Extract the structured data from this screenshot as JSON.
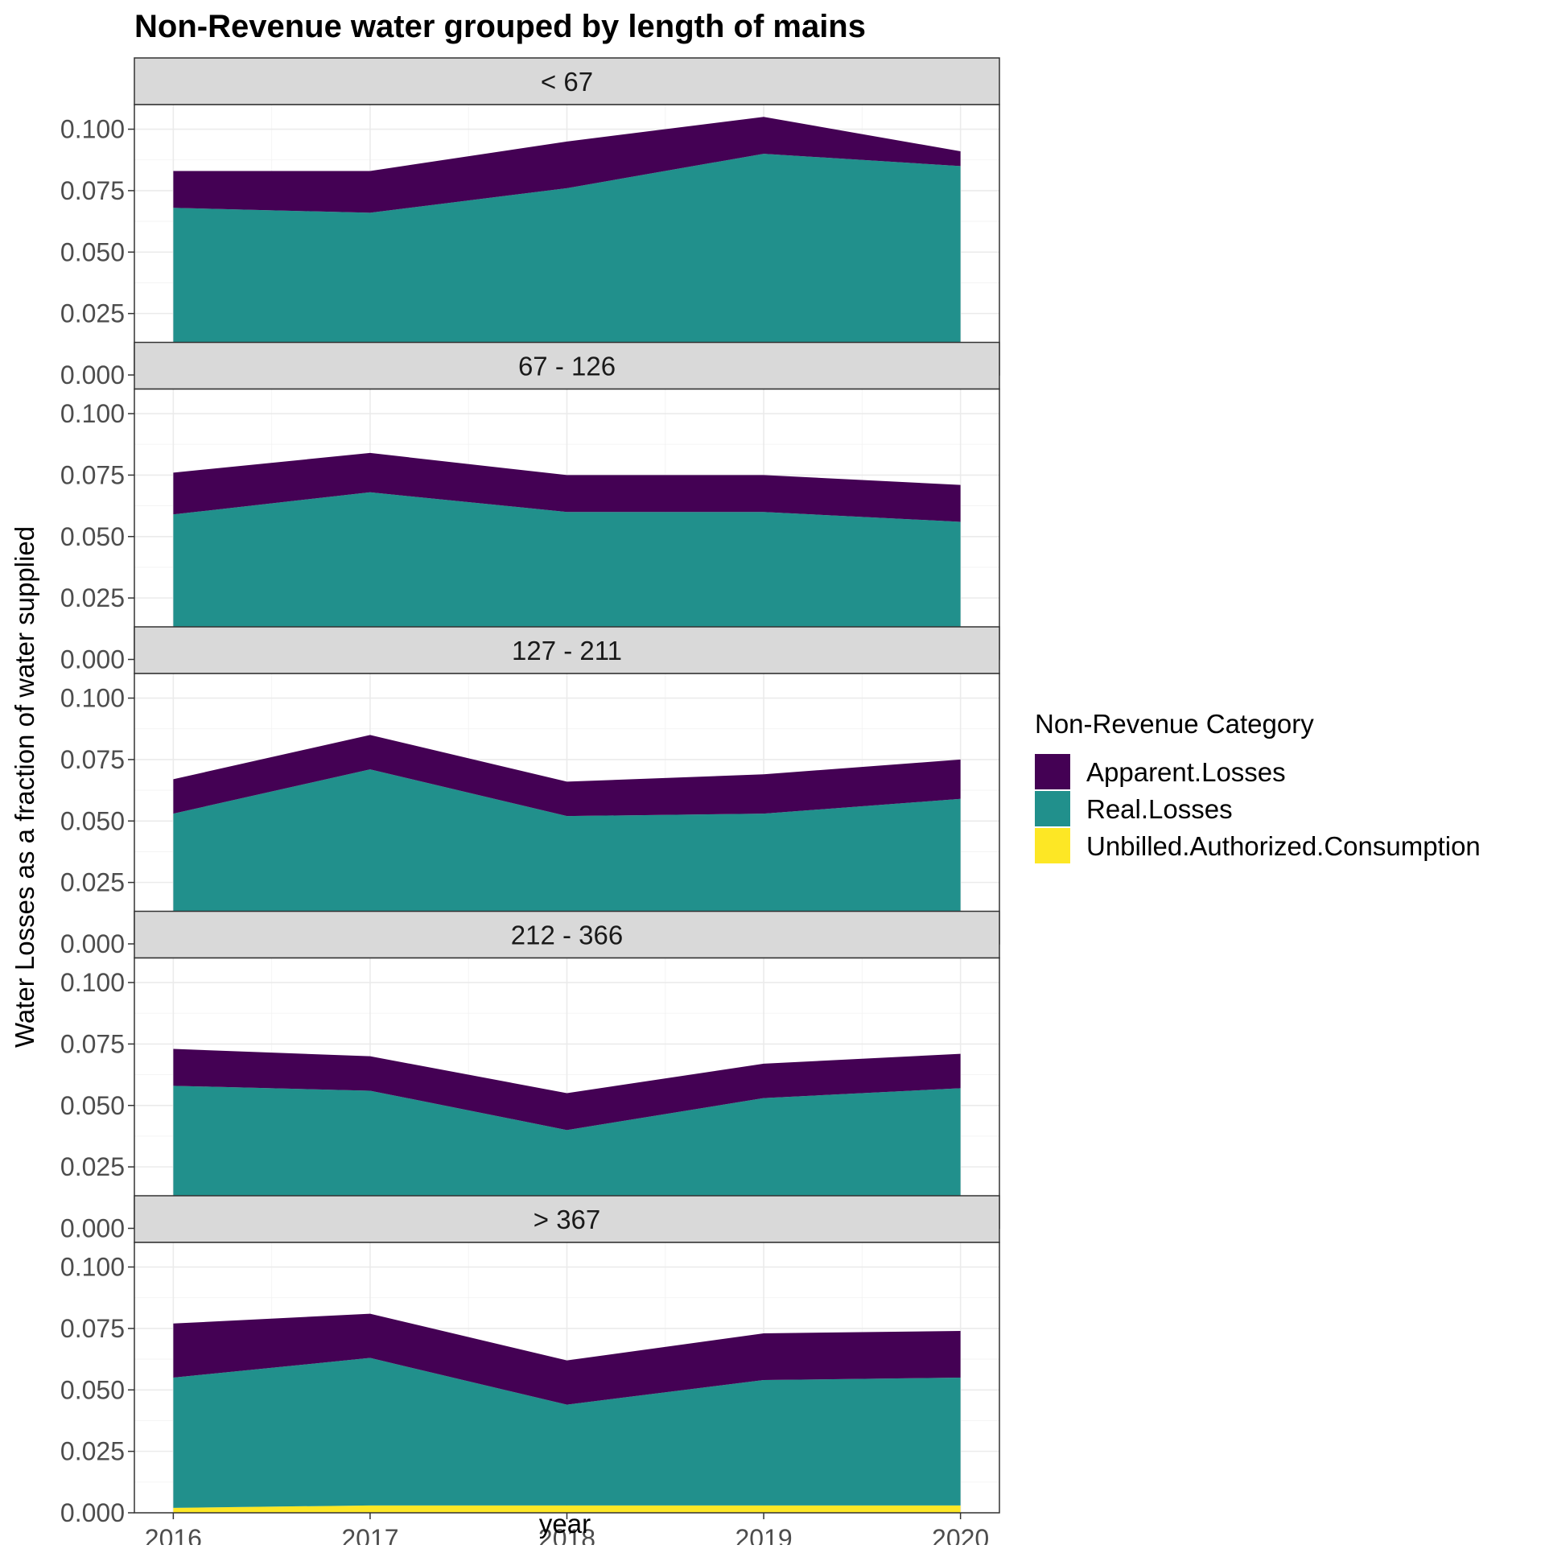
{
  "chart_data": {
    "type": "area",
    "stacked": true,
    "title": "Non-Revenue water grouped by length of mains",
    "xlabel": "year",
    "ylabel": "Water Losses as a fraction of water supplied",
    "x": [
      2016,
      2017,
      2018,
      2019,
      2020
    ],
    "xticks": [
      "2016",
      "2017",
      "2018",
      "2019",
      "2020"
    ],
    "ylim": [
      0,
      0.11
    ],
    "yticks": [
      "0.000",
      "0.025",
      "0.050",
      "0.075",
      "0.100"
    ],
    "ytick_values": [
      0,
      0.025,
      0.05,
      0.075,
      0.1
    ],
    "grid": true,
    "legend": {
      "title": "Non-Revenue Category",
      "position": "right",
      "entries": [
        "Apparent.Losses",
        "Real.Losses",
        "Unbilled.Authorized.Consumption"
      ]
    },
    "colors": {
      "Apparent.Losses": "#440154",
      "Real.Losses": "#21908C",
      "Unbilled.Authorized.Consumption": "#FDE725"
    },
    "stack_order_bottom_to_top": [
      "Unbilled.Authorized.Consumption",
      "Real.Losses",
      "Apparent.Losses"
    ],
    "facets": [
      {
        "label": "< 67",
        "series": [
          {
            "name": "Apparent.Losses",
            "values": [
              0.015,
              0.017,
              0.019,
              0.015,
              0.006
            ]
          },
          {
            "name": "Real.Losses",
            "values": [
              0.065,
              0.063,
              0.066,
              0.078,
              0.079
            ]
          },
          {
            "name": "Unbilled.Authorized.Consumption",
            "values": [
              0.003,
              0.003,
              0.01,
              0.012,
              0.006
            ]
          }
        ]
      },
      {
        "label": "67 - 126",
        "series": [
          {
            "name": "Apparent.Losses",
            "values": [
              0.017,
              0.016,
              0.015,
              0.015,
              0.015
            ]
          },
          {
            "name": "Real.Losses",
            "values": [
              0.057,
              0.063,
              0.05,
              0.053,
              0.044
            ]
          },
          {
            "name": "Unbilled.Authorized.Consumption",
            "values": [
              0.002,
              0.005,
              0.01,
              0.007,
              0.012
            ]
          }
        ]
      },
      {
        "label": "127 - 211",
        "series": [
          {
            "name": "Apparent.Losses",
            "values": [
              0.014,
              0.014,
              0.014,
              0.016,
              0.016
            ]
          },
          {
            "name": "Real.Losses",
            "values": [
              0.051,
              0.068,
              0.049,
              0.05,
              0.053
            ]
          },
          {
            "name": "Unbilled.Authorized.Consumption",
            "values": [
              0.002,
              0.003,
              0.003,
              0.003,
              0.006
            ]
          }
        ]
      },
      {
        "label": "212 - 366",
        "series": [
          {
            "name": "Apparent.Losses",
            "values": [
              0.015,
              0.014,
              0.015,
              0.014,
              0.014
            ]
          },
          {
            "name": "Real.Losses",
            "values": [
              0.055,
              0.053,
              0.037,
              0.05,
              0.054
            ]
          },
          {
            "name": "Unbilled.Authorized.Consumption",
            "values": [
              0.003,
              0.003,
              0.003,
              0.003,
              0.003
            ]
          }
        ]
      },
      {
        "label": "> 367",
        "series": [
          {
            "name": "Apparent.Losses",
            "values": [
              0.022,
              0.018,
              0.018,
              0.019,
              0.019
            ]
          },
          {
            "name": "Real.Losses",
            "values": [
              0.053,
              0.06,
              0.041,
              0.051,
              0.052
            ]
          },
          {
            "name": "Unbilled.Authorized.Consumption",
            "values": [
              0.002,
              0.003,
              0.003,
              0.003,
              0.003
            ]
          }
        ]
      }
    ]
  }
}
